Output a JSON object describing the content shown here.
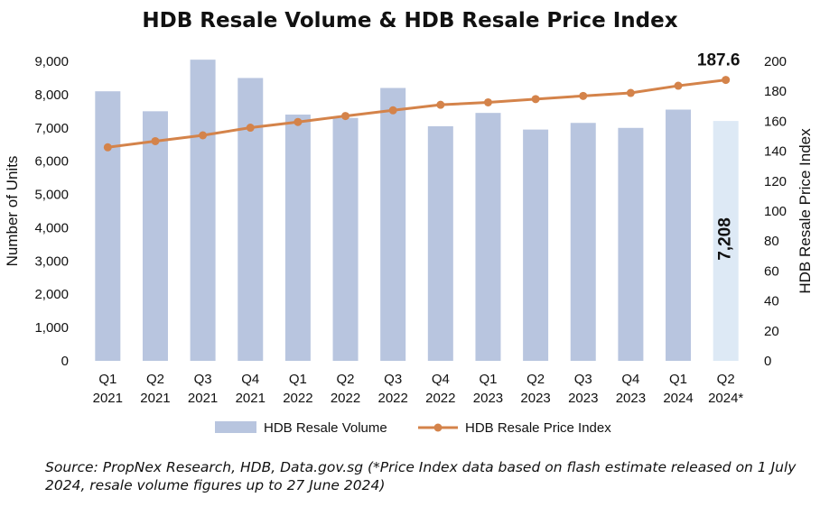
{
  "chart_data": {
    "type": "bar",
    "title": "HDB Resale Volume & HDB Resale Price Index",
    "categories": [
      [
        "Q1",
        "2021"
      ],
      [
        "Q2",
        "2021"
      ],
      [
        "Q3",
        "2021"
      ],
      [
        "Q4",
        "2021"
      ],
      [
        "Q1",
        "2022"
      ],
      [
        "Q2",
        "2022"
      ],
      [
        "Q3",
        "2022"
      ],
      [
        "Q4",
        "2022"
      ],
      [
        "Q1",
        "2023"
      ],
      [
        "Q2",
        "2023"
      ],
      [
        "Q3",
        "2023"
      ],
      [
        "Q4",
        "2023"
      ],
      [
        "Q1",
        "2024"
      ],
      [
        "Q2",
        "2024*"
      ]
    ],
    "series": [
      {
        "name": "HDB Resale Volume",
        "type": "bar",
        "axis": "left",
        "color": "#b8c5df",
        "highlight_color": "#dde9f5",
        "values": [
          8100,
          7500,
          9050,
          8500,
          7400,
          7300,
          8200,
          7050,
          7450,
          6950,
          7150,
          7000,
          7550,
          7208
        ]
      },
      {
        "name": "HDB Resale Price Index",
        "type": "line",
        "axis": "right",
        "color": "#d4834a",
        "values": [
          142.6,
          146.7,
          150.6,
          155.7,
          159.5,
          163.5,
          167.3,
          171.0,
          172.6,
          174.8,
          176.9,
          178.9,
          183.7,
          187.6
        ]
      }
    ],
    "highlight_index": 13,
    "annotations": {
      "bar_label": "7,208",
      "line_label": "187.6"
    },
    "ylabel": "Number of Units",
    "y2label": "HDB Resale Price Index",
    "ylim": [
      0,
      9000
    ],
    "y2lim": [
      0,
      200
    ],
    "yticks": [
      "0",
      "1,000",
      "2,000",
      "3,000",
      "4,000",
      "5,000",
      "6,000",
      "7,000",
      "8,000",
      "9,000"
    ],
    "y2ticks": [
      "0",
      "20",
      "40",
      "60",
      "80",
      "100",
      "120",
      "140",
      "160",
      "180",
      "200"
    ],
    "legend_position": "bottom",
    "grid": false
  },
  "source": "Source: PropNex Research, HDB, Data.gov.sg (*Price Index data based on flash estimate released on 1 July 2024, resale volume figures up to 27 June 2024)"
}
